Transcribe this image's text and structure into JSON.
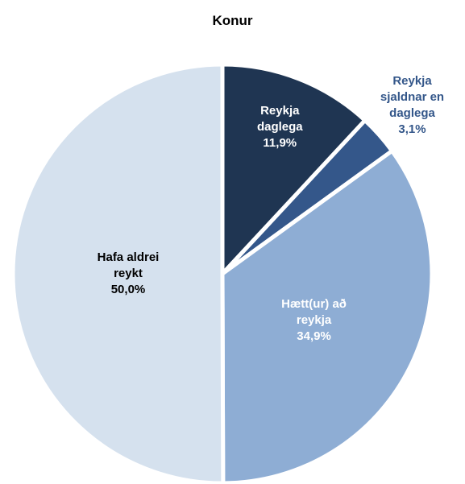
{
  "chart_data": {
    "type": "pie",
    "title": "Konur",
    "categories": [
      "Reykja daglega",
      "Reykja sjaldnar en daglega",
      "Hætt(ur) að reykja",
      "Hafa aldrei reykt"
    ],
    "values": [
      11.9,
      3.1,
      34.9,
      50.0
    ],
    "value_labels": [
      "11,9%",
      "3,1%",
      "34,9%",
      "50,0%"
    ],
    "colors": [
      "#1f3552",
      "#34578a",
      "#8eadd4",
      "#d5e1ee"
    ],
    "label_colors": [
      "#ffffff",
      "#34578a",
      "#ffffff",
      "#000000"
    ]
  }
}
